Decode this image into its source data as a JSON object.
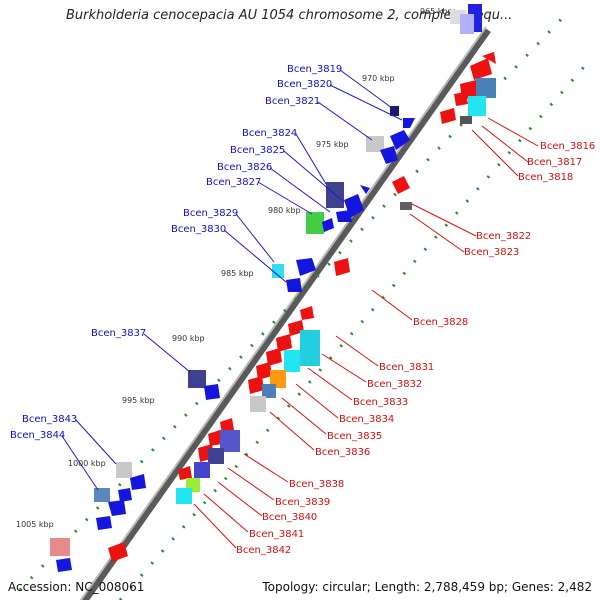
{
  "title": "Burkholderia cenocepacia AU 1054 chromosome 2, complete sequ...",
  "accession": "Accession: NC_008061",
  "summary": "Topology: circular; Length: 2,788,459 bp; Genes: 2,482",
  "colors": {
    "forward_label": "#1010c0",
    "reverse_label": "#d01010",
    "backbone": "#808080",
    "tick": "#2a8a2a"
  },
  "scale_labels": [
    "965 kbp",
    "970 kbp",
    "975 kbp",
    "980 kbp",
    "985 kbp",
    "990 kbp",
    "995 kbp",
    "1000 kbp",
    "1005 kbp"
  ],
  "forward_genes": [
    "Bcen_3819",
    "Bcen_3820",
    "Bcen_3821",
    "Bcen_3824",
    "Bcen_3825",
    "Bcen_3826",
    "Bcen_3827",
    "Bcen_3829",
    "Bcen_3830",
    "Bcen_3837",
    "Bcen_3843",
    "Bcen_3844"
  ],
  "reverse_genes": [
    "Bcen_3816",
    "Bcen_3817",
    "Bcen_3818",
    "Bcen_3822",
    "Bcen_3823",
    "Bcen_3828",
    "Bcen_3831",
    "Bcen_3832",
    "Bcen_3833",
    "Bcen_3834",
    "Bcen_3835",
    "Bcen_3836",
    "Bcen_3838",
    "Bcen_3839",
    "Bcen_3840",
    "Bcen_3841",
    "Bcen_3842"
  ]
}
